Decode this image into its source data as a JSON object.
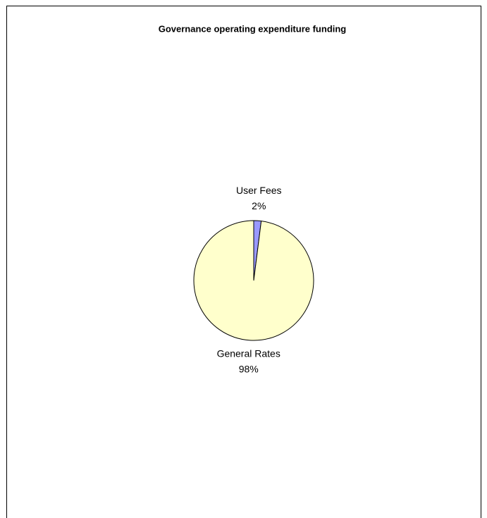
{
  "chart_data": {
    "type": "pie",
    "title": "Governance operating expenditure funding",
    "categories": [
      "User Fees",
      "General Rates"
    ],
    "values": [
      2,
      98
    ],
    "value_labels": [
      "2%",
      "98%"
    ],
    "colors": [
      "#9999ff",
      "#ffffcc"
    ]
  }
}
